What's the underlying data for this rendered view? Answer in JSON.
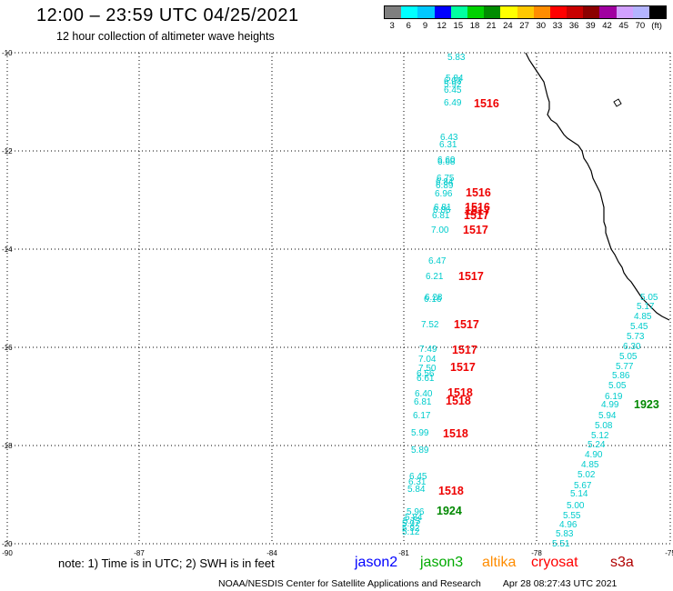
{
  "header": {
    "title": "12:00 – 23:59 UTC 04/25/2021",
    "subtitle": "12 hour collection of altimeter wave heights"
  },
  "colorbar": {
    "colors": [
      "#7f7f7f",
      "#00ffff",
      "#00c8ff",
      "#0000ff",
      "#00ffa0",
      "#00d200",
      "#008c00",
      "#ffff00",
      "#ffc800",
      "#ff8c00",
      "#ff0000",
      "#c80000",
      "#8c0000",
      "#a000a0",
      "#d2a0ff",
      "#b4b4ff",
      "#000000"
    ],
    "labels": [
      "3",
      "6",
      "9",
      "12",
      "15",
      "18",
      "21",
      "24",
      "27",
      "30",
      "33",
      "36",
      "39",
      "42",
      "45",
      "70",
      "(ft)"
    ]
  },
  "axes": {
    "x_labels": [
      "-90",
      "-87",
      "-84",
      "-81",
      "-78",
      "-75"
    ],
    "y_labels": [
      "-10",
      "-12",
      "-14",
      "-16",
      "-18",
      "-20"
    ]
  },
  "tracks": [
    {
      "name": "jason3 (cyan)",
      "color": "#00cccc",
      "values": [
        "5.83",
        "5.84",
        "6.03",
        "5.92",
        "6.45",
        "6.49",
        "6.43",
        "6.31",
        "6.60",
        "6.68",
        "6.75",
        "6.84",
        "6.89",
        "6.96",
        "6.81",
        "6.86",
        "6.81",
        "7.00",
        "6.47",
        "6.21",
        "6.28",
        "6.16",
        "7.52",
        "7.49",
        "7.04",
        "7.50",
        "6.56",
        "6.61",
        "6.40",
        "6.81",
        "6.17",
        "5.99",
        "5.89",
        "6.45",
        "6.31",
        "5.84",
        "5.96",
        "5.84",
        "5.73",
        "5.97",
        "5.92",
        "5.12"
      ]
    },
    {
      "name": "track2 (cyan)",
      "color": "#00cccc",
      "values": [
        "5.05",
        "5.17",
        "4.85",
        "5.45",
        "5.73",
        "6.30",
        "5.05",
        "5.77",
        "5.86",
        "5.05",
        "6.19",
        "4.99",
        "5.94",
        "5.08",
        "5.12",
        "5.24",
        "4.90",
        "4.85",
        "5.02",
        "5.67",
        "5.14",
        "5.00",
        "5.55",
        "4.96",
        "5.83",
        "5.51"
      ]
    }
  ],
  "times": [
    {
      "text": "1516",
      "color": "#ee0000"
    },
    {
      "text": "1516",
      "color": "#ee0000"
    },
    {
      "text": "1516",
      "color": "#ee0000"
    },
    {
      "text": "1517",
      "color": "#ee0000"
    },
    {
      "text": "1517",
      "color": "#ee0000"
    },
    {
      "text": "1517",
      "color": "#ee0000"
    },
    {
      "text": "1517",
      "color": "#ee0000"
    },
    {
      "text": "1517",
      "color": "#ee0000"
    },
    {
      "text": "1517",
      "color": "#ee0000"
    },
    {
      "text": "1517",
      "color": "#ee0000"
    },
    {
      "text": "1518",
      "color": "#ee0000"
    },
    {
      "text": "1518",
      "color": "#ee0000"
    },
    {
      "text": "1518",
      "color": "#ee0000"
    },
    {
      "text": "1518",
      "color": "#ee0000"
    },
    {
      "text": "1924",
      "color": "#008800"
    },
    {
      "text": "1923",
      "color": "#008800"
    }
  ],
  "footer": {
    "note": "note:  1) Time is in UTC;  2) SWH is in feet",
    "missions": [
      {
        "name": "jason2",
        "color": "#0000ff"
      },
      {
        "name": "jason3",
        "color": "#00aa00"
      },
      {
        "name": "altika",
        "color": "#ff8c00"
      },
      {
        "name": "cryosat",
        "color": "#ff0000"
      },
      {
        "name": "s3a",
        "color": "#b00000"
      }
    ],
    "credit": "NOAA/NESDIS Center for Satellite Applications and Research",
    "timestamp": "Apr 28 08:27:43 UTC 2021"
  }
}
